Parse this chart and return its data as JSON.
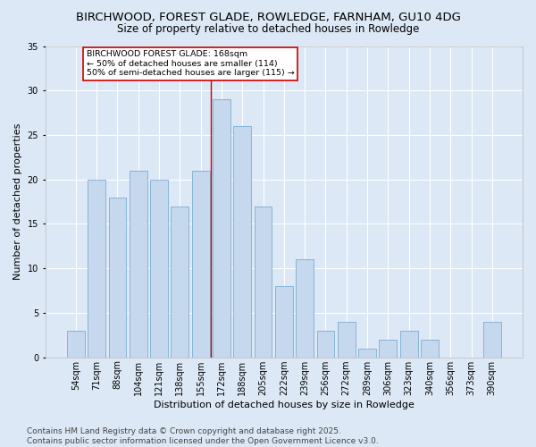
{
  "title": "BIRCHWOOD, FOREST GLADE, ROWLEDGE, FARNHAM, GU10 4DG",
  "subtitle": "Size of property relative to detached houses in Rowledge",
  "xlabel": "Distribution of detached houses by size in Rowledge",
  "ylabel": "Number of detached properties",
  "categories": [
    "54sqm",
    "71sqm",
    "88sqm",
    "104sqm",
    "121sqm",
    "138sqm",
    "155sqm",
    "172sqm",
    "188sqm",
    "205sqm",
    "222sqm",
    "239sqm",
    "256sqm",
    "272sqm",
    "289sqm",
    "306sqm",
    "323sqm",
    "340sqm",
    "356sqm",
    "373sqm",
    "390sqm"
  ],
  "values": [
    3,
    20,
    18,
    21,
    20,
    17,
    21,
    29,
    26,
    17,
    8,
    11,
    3,
    4,
    1,
    2,
    3,
    2,
    0,
    0,
    4
  ],
  "bar_color": "#c5d8ed",
  "bar_edge_color": "#7aaed0",
  "background_color": "#dce8f5",
  "grid_color": "#ffffff",
  "vline_index": 7,
  "vline_color": "#cc0000",
  "annotation_text": "BIRCHWOOD FOREST GLADE: 168sqm\n← 50% of detached houses are smaller (114)\n50% of semi-detached houses are larger (115) →",
  "annotation_box_color": "#cc0000",
  "footer_text": "Contains HM Land Registry data © Crown copyright and database right 2025.\nContains public sector information licensed under the Open Government Licence v3.0.",
  "ylim": [
    0,
    35
  ],
  "yticks": [
    0,
    5,
    10,
    15,
    20,
    25,
    30,
    35
  ],
  "title_fontsize": 9.5,
  "subtitle_fontsize": 8.5,
  "axis_fontsize": 8,
  "tick_fontsize": 7,
  "annotation_fontsize": 6.8,
  "footer_fontsize": 6.5
}
